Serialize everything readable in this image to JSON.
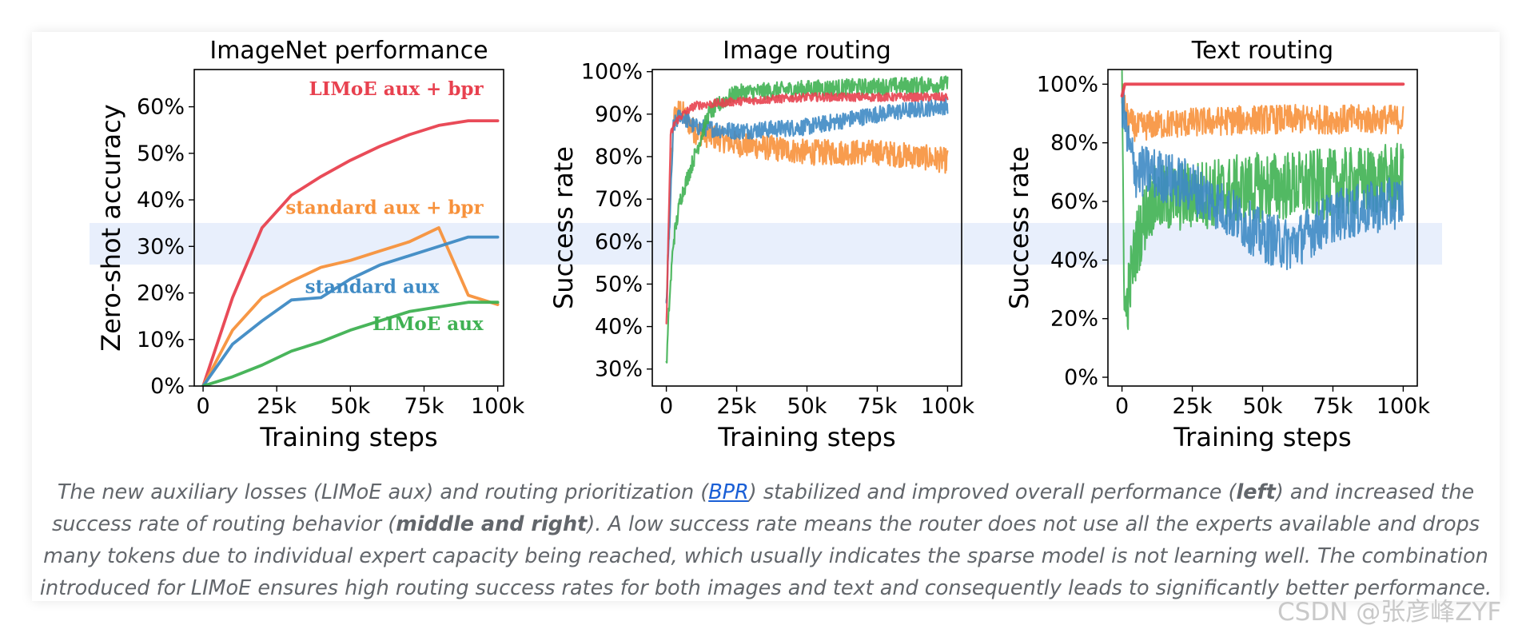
{
  "caption": {
    "part1": "The new auxiliary losses (LIMoE aux) and routing prioritization (",
    "link": "BPR",
    "part2": ") stabilized and improved overall performance (",
    "bold1": "left",
    "part3": ") and increased the success rate of routing behavior (",
    "bold2": "middle and right",
    "part4": "). A low success rate means the router does not use all the experts available and drops many tokens due to individual expert capacity being reached, which usually indicates the sparse model is not learning well. The combination introduced for LIMoE ensures high routing success rates for both images and text and consequently leads to significantly better performance."
  },
  "watermark": "CSDN @张彦峰ZYF",
  "colors": {
    "red": "#e8414f",
    "orange": "#f7913b",
    "blue": "#3e8ac4",
    "green": "#3fb152"
  },
  "chart_data": [
    {
      "type": "line",
      "title": "ImageNet performance",
      "xlabel": "Training steps",
      "ylabel": "Zero-shot accuracy",
      "xlim": [
        -3000,
        102000
      ],
      "ylim": [
        0,
        68
      ],
      "xticks": [
        0,
        25000,
        50000,
        75000,
        100000
      ],
      "xtick_labels": [
        "0",
        "25k",
        "50k",
        "75k",
        "100k"
      ],
      "yticks": [
        0,
        10,
        20,
        30,
        40,
        50,
        60
      ],
      "ytick_labels": [
        "0%",
        "10%",
        "20%",
        "30%",
        "40%",
        "50%",
        "60%"
      ],
      "series": [
        {
          "name": "LIMoE aux + bpr",
          "color": "#e8414f",
          "x": [
            0,
            10000,
            20000,
            30000,
            40000,
            50000,
            60000,
            70000,
            80000,
            90000,
            100000
          ],
          "y": [
            0,
            19,
            34,
            41,
            45,
            48.5,
            51.5,
            54,
            56,
            57,
            57
          ],
          "label": {
            "text": "LIMoE aux + bpr",
            "x": 100000,
            "y": 62.5
          }
        },
        {
          "name": "standard aux + bpr",
          "color": "#f7913b",
          "x": [
            0,
            10000,
            20000,
            30000,
            40000,
            50000,
            60000,
            70000,
            80000,
            90000,
            100000
          ],
          "y": [
            0,
            12,
            19,
            22.5,
            25.5,
            27,
            29,
            31,
            34,
            19.5,
            17.5
          ],
          "label": {
            "text": "standard aux + bpr",
            "x": 100000,
            "y": 37
          }
        },
        {
          "name": "standard aux",
          "color": "#3e8ac4",
          "x": [
            0,
            10000,
            20000,
            30000,
            40000,
            50000,
            60000,
            70000,
            80000,
            90000,
            100000
          ],
          "y": [
            0,
            9,
            14,
            18.5,
            19,
            23,
            26,
            28,
            30,
            32,
            32
          ],
          "label": {
            "text": "standard aux",
            "x": 85000,
            "y": 20
          }
        },
        {
          "name": "LIMoE aux",
          "color": "#3fb152",
          "x": [
            0,
            10000,
            20000,
            30000,
            40000,
            50000,
            60000,
            70000,
            80000,
            90000,
            100000
          ],
          "y": [
            0,
            2,
            4.5,
            7.5,
            9.5,
            12,
            14,
            16,
            17,
            18,
            18
          ],
          "label": {
            "text": "LIMoE aux",
            "x": 100000,
            "y": 12
          }
        }
      ]
    },
    {
      "type": "line",
      "title": "Image routing",
      "xlabel": "Training steps",
      "ylabel": "Success rate",
      "xlim": [
        -5000,
        105000
      ],
      "ylim": [
        26,
        100.5
      ],
      "xticks": [
        0,
        25000,
        50000,
        75000,
        100000
      ],
      "xtick_labels": [
        "0",
        "25k",
        "50k",
        "75k",
        "100k"
      ],
      "yticks": [
        30,
        40,
        50,
        60,
        70,
        80,
        90,
        100
      ],
      "ytick_labels": [
        "30%",
        "40%",
        "50%",
        "60%",
        "70%",
        "80%",
        "90%",
        "100%"
      ],
      "series": [
        {
          "name": "orange",
          "color": "#f7913b",
          "x": [
            0,
            2500,
            5000,
            10000,
            15000,
            25000,
            50000,
            75000,
            90000,
            100000
          ],
          "y": [
            45,
            89,
            91,
            86,
            85,
            83,
            81,
            81,
            80,
            79
          ],
          "noise": 3
        },
        {
          "name": "blue",
          "color": "#3e8ac4",
          "x": [
            0,
            2500,
            5000,
            10000,
            25000,
            50000,
            75000,
            100000
          ],
          "y": [
            45,
            87,
            90,
            87,
            86,
            87,
            90,
            92
          ],
          "noise": 2
        },
        {
          "name": "green",
          "color": "#3fb152",
          "x": [
            0,
            1000,
            2500,
            5000,
            8000,
            12000,
            15000,
            20000,
            25000,
            50000,
            75000,
            100000
          ],
          "y": [
            30,
            45,
            60,
            70,
            76,
            84,
            90,
            93,
            95,
            96,
            96.5,
            97
          ],
          "noise": 2
        },
        {
          "name": "red",
          "color": "#e8414f",
          "x": [
            0,
            1500,
            3000,
            6000,
            10000,
            25000,
            50000,
            75000,
            100000
          ],
          "y": [
            40,
            85,
            88,
            90,
            92,
            93,
            94,
            94,
            94
          ],
          "noise": 1
        }
      ]
    },
    {
      "type": "line",
      "title": "Text routing",
      "xlabel": "Training steps",
      "ylabel": "Success rate",
      "xlim": [
        -5000,
        105000
      ],
      "ylim": [
        -3,
        105
      ],
      "xticks": [
        0,
        25000,
        50000,
        75000,
        100000
      ],
      "xtick_labels": [
        "0",
        "25k",
        "50k",
        "75k",
        "100k"
      ],
      "yticks": [
        0,
        20,
        40,
        60,
        80,
        100
      ],
      "ytick_labels": [
        "0%",
        "20%",
        "40%",
        "60%",
        "80%",
        "100%"
      ],
      "series": [
        {
          "name": "orange",
          "color": "#f7913b",
          "x": [
            0,
            2000,
            5000,
            10000,
            25000,
            50000,
            75000,
            100000
          ],
          "y": [
            96,
            88,
            85,
            86,
            87,
            88,
            88,
            88
          ],
          "noise": 5
        },
        {
          "name": "green",
          "color": "#3fb152",
          "x": [
            0,
            1000,
            2500,
            5000,
            10000,
            25000,
            50000,
            75000,
            100000
          ],
          "y": [
            95,
            20,
            30,
            45,
            60,
            62,
            65,
            66,
            68
          ],
          "noise": 12
        },
        {
          "name": "blue",
          "color": "#3e8ac4",
          "x": [
            0,
            2000,
            5000,
            10000,
            25000,
            40000,
            50000,
            60000,
            75000,
            100000
          ],
          "y": [
            95,
            80,
            70,
            70,
            65,
            55,
            48,
            45,
            55,
            60
          ],
          "noise": 9
        },
        {
          "name": "red",
          "color": "#e8414f",
          "x": [
            0,
            1000,
            3000,
            100000
          ],
          "y": [
            96,
            100,
            100,
            100
          ],
          "noise": 0
        }
      ]
    }
  ]
}
